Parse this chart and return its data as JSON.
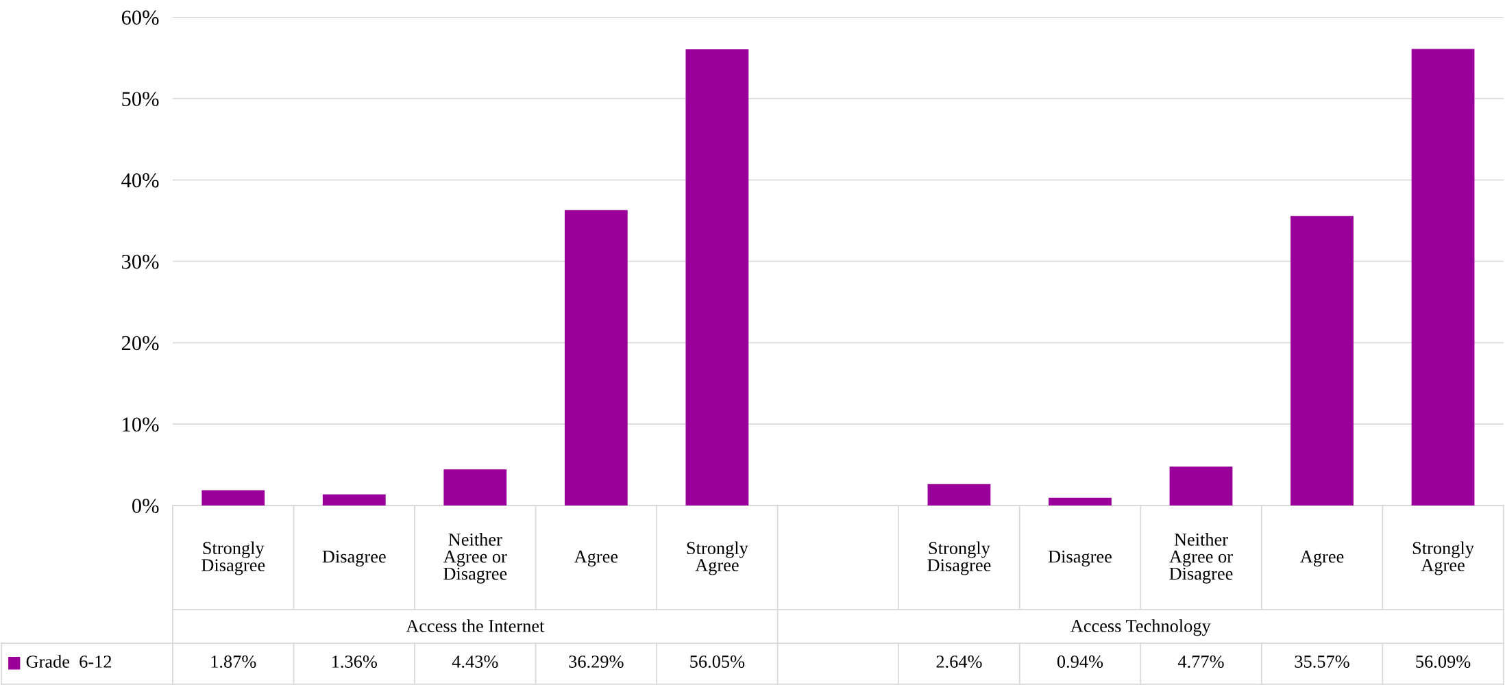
{
  "chart_data": {
    "type": "bar",
    "categories": [
      "Strongly Disagree",
      "Disagree",
      "Neither Agree or Disagree",
      "Agree",
      "Strongly Agree",
      null,
      "Strongly Disagree",
      "Disagree",
      "Neither Agree or Disagree",
      "Agree",
      "Strongly Agree"
    ],
    "annotations": [
      "Access the Internet",
      "Access Technology"
    ],
    "series": [
      {
        "name": "Grade  6-12",
        "color": "#990099",
        "values": [
          1.87,
          1.36,
          4.43,
          36.29,
          56.05,
          null,
          2.64,
          0.94,
          4.77,
          35.57,
          56.09
        ],
        "value_labels": [
          "1.87%",
          "1.36%",
          "4.43%",
          "36.29%",
          "56.05%",
          null,
          "2.64%",
          "0.94%",
          "4.77%",
          "35.57%",
          "56.09%"
        ]
      }
    ],
    "ylim": [
      0,
      60
    ],
    "yticks": [
      {
        "value": 0,
        "label": "0%"
      },
      {
        "value": 10,
        "label": "10%"
      },
      {
        "value": 20,
        "label": "20%"
      },
      {
        "value": 30,
        "label": "30%"
      },
      {
        "value": 40,
        "label": "40%"
      },
      {
        "value": 50,
        "label": "50%"
      },
      {
        "value": 60,
        "label": "60%"
      }
    ],
    "grid": "y"
  }
}
